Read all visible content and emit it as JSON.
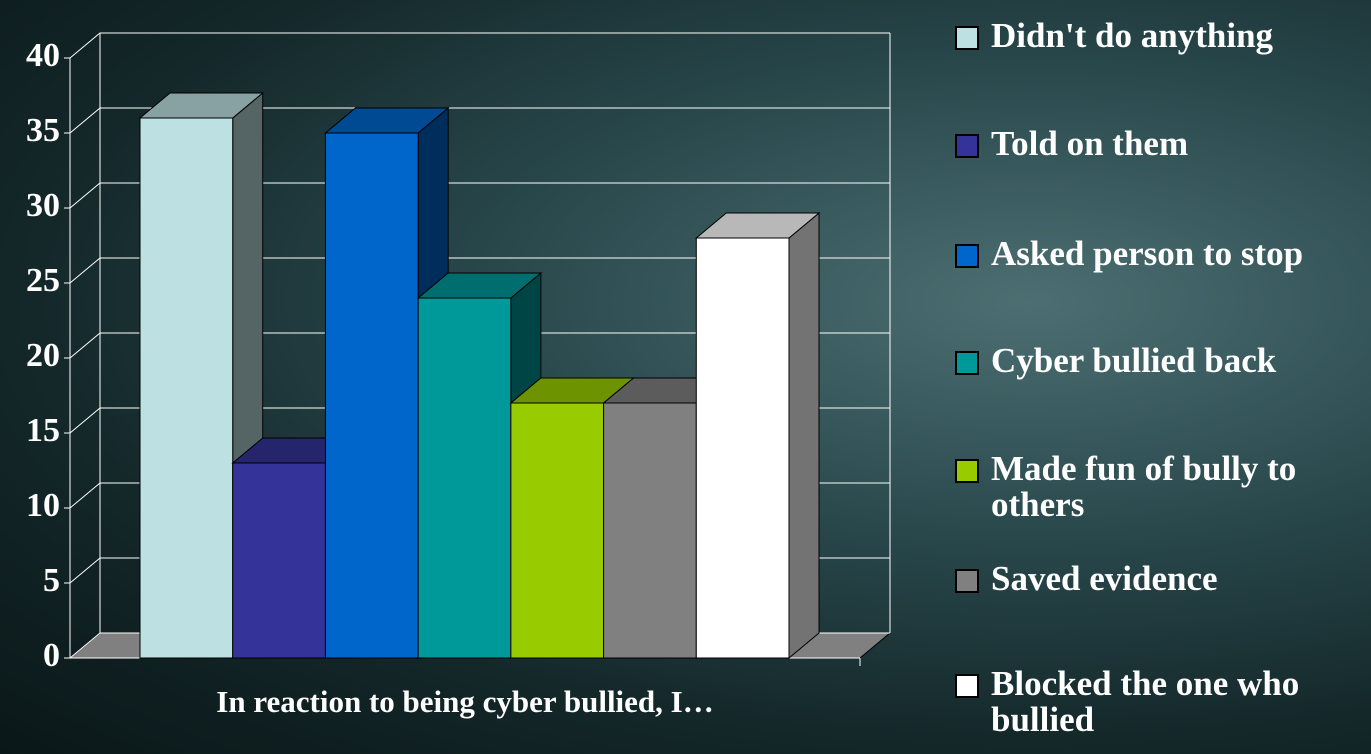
{
  "chart_data": {
    "type": "bar3d",
    "categories": [
      "In reaction to being cyber bullied, I…"
    ],
    "series": [
      {
        "name": "Didn't do anything",
        "color": "#bde0e3",
        "values": [
          36
        ]
      },
      {
        "name": "Told on them",
        "color": "#333399",
        "values": [
          13
        ]
      },
      {
        "name": "Asked person to stop",
        "color": "#0066cc",
        "values": [
          35
        ]
      },
      {
        "name": "Cyber bullied back",
        "color": "#009999",
        "values": [
          24
        ]
      },
      {
        "name": "Made fun of bully to others",
        "color": "#99cc00",
        "values": [
          17
        ]
      },
      {
        "name": "Saved evidence",
        "color": "#808080",
        "values": [
          17
        ]
      },
      {
        "name": "Blocked the one who bullied",
        "color": "#ffffff",
        "values": [
          28
        ]
      }
    ],
    "ylim": [
      0,
      40
    ],
    "yticks": [
      0,
      5,
      10,
      15,
      20,
      25,
      30,
      35,
      40
    ],
    "grid": true,
    "legend": "right"
  }
}
